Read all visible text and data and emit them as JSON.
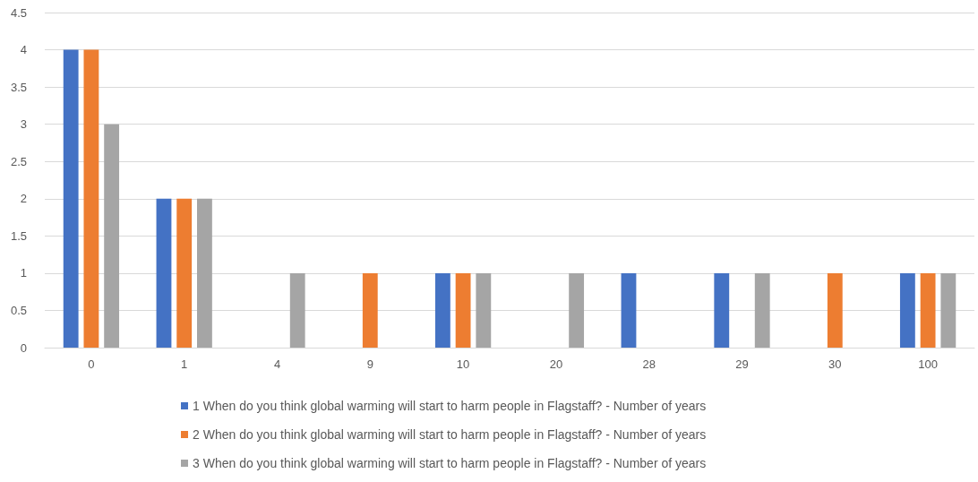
{
  "chart_data": {
    "type": "bar",
    "categories": [
      "0",
      "1",
      "4",
      "9",
      "10",
      "20",
      "28",
      "29",
      "30",
      "100"
    ],
    "series": [
      {
        "name": "1 When do you think global warming will start to harm people in Flagstaff? - Number of years",
        "color": "#4472c4",
        "values": [
          4,
          2,
          null,
          null,
          1,
          null,
          1,
          1,
          null,
          1
        ]
      },
      {
        "name": "2 When do you think global warming will start to harm people in Flagstaff? - Number of years",
        "color": "#ed7d31",
        "values": [
          4,
          2,
          null,
          1,
          1,
          null,
          null,
          null,
          1,
          1
        ]
      },
      {
        "name": "3 When do you think global warming will start to harm people in Flagstaff? - Number of years",
        "color": "#a5a5a5",
        "values": [
          3,
          2,
          1,
          null,
          1,
          1,
          null,
          1,
          null,
          1
        ]
      }
    ],
    "ylim": [
      0,
      4.5
    ],
    "yticks": [
      0,
      0.5,
      1,
      1.5,
      2,
      2.5,
      3,
      3.5,
      4,
      4.5
    ],
    "grid": "y",
    "legend": "bottom"
  }
}
